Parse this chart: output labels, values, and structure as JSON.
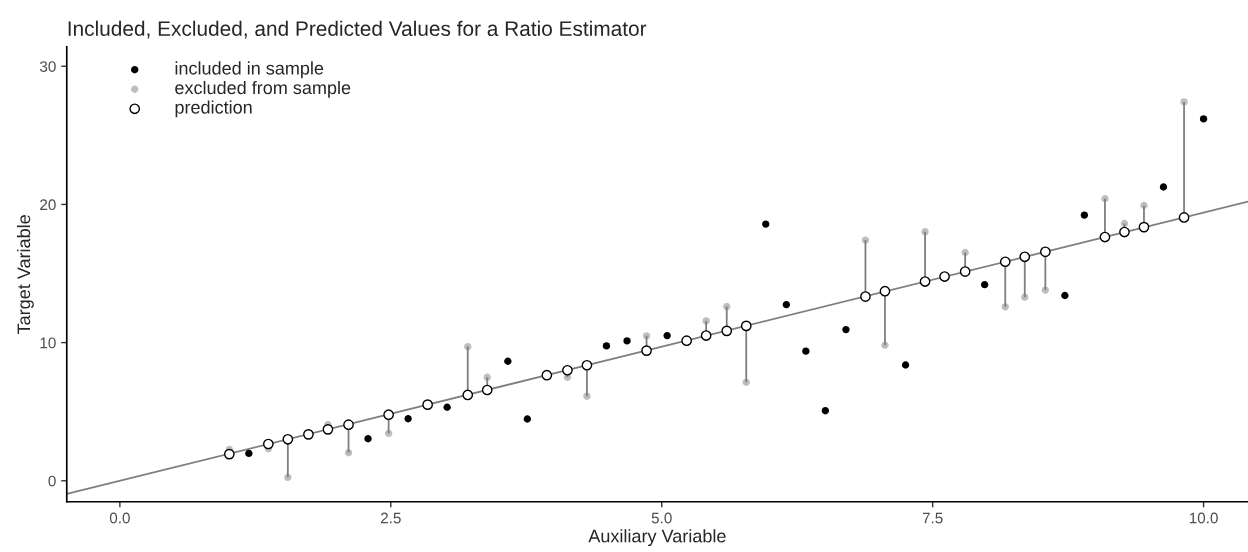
{
  "chart_data": {
    "type": "scatter",
    "title": "Included, Excluded, and Predicted Values for a Ratio Estimator",
    "xlabel": "Auxiliary Variable",
    "ylabel": "Target Variable",
    "xlim": [
      -0.49,
      10.41
    ],
    "ylim": [
      -1.52,
      31.4
    ],
    "xticks": [
      {
        "value": 0,
        "label": "0.0"
      },
      {
        "value": 2.5,
        "label": "2.5"
      },
      {
        "value": 5,
        "label": "5.0"
      },
      {
        "value": 7.5,
        "label": "7.5"
      },
      {
        "value": 10,
        "label": "10.0"
      }
    ],
    "yticks": [
      0,
      10,
      20,
      30
    ],
    "grid": false,
    "legend": "top left",
    "series": [
      {
        "type": "line",
        "color": "#7f7f7f",
        "marker": "none",
        "x": [
          -0.49,
          10.41
        ],
        "values": [
          -0.95,
          20.2
        ]
      },
      {
        "name": "included in sample",
        "color": "#000000",
        "x": [
          1.19,
          2.29,
          2.66,
          3.02,
          3.58,
          3.76,
          4.49,
          4.68,
          5.05,
          5.96,
          6.15,
          6.33,
          6.51,
          6.7,
          7.25,
          7.98,
          8.72,
          8.9,
          9.63,
          10.0
        ],
        "values": [
          1.98,
          3.04,
          4.49,
          5.32,
          8.65,
          4.47,
          9.76,
          10.12,
          10.51,
          18.58,
          12.75,
          9.38,
          5.07,
          10.94,
          8.38,
          14.2,
          13.41,
          19.23,
          21.26,
          26.19
        ]
      },
      {
        "name": "excluded from sample",
        "color": "#bebebe",
        "x": [
          1.01,
          1.37,
          1.55,
          1.92,
          2.11,
          2.48,
          3.21,
          3.39,
          4.13,
          4.31,
          4.86,
          5.41,
          5.6,
          5.78,
          6.88,
          7.06,
          7.43,
          7.8,
          8.17,
          8.35,
          8.54,
          9.09,
          9.27,
          9.45,
          9.82
        ],
        "values": [
          2.27,
          2.32,
          0.25,
          4.06,
          2.03,
          3.43,
          9.71,
          7.49,
          7.49,
          6.12,
          10.49,
          11.57,
          12.61,
          7.13,
          17.42,
          9.81,
          18.02,
          16.52,
          12.59,
          13.29,
          13.8,
          20.41,
          18.62,
          19.93,
          27.42
        ]
      },
      {
        "name": "prediction",
        "color": "#ffffff",
        "x": [
          1.01,
          1.37,
          1.55,
          1.74,
          1.92,
          2.11,
          2.48,
          2.84,
          3.21,
          3.39,
          3.94,
          4.13,
          4.31,
          4.86,
          5.23,
          5.41,
          5.6,
          5.78,
          6.88,
          7.06,
          7.43,
          7.61,
          7.8,
          8.17,
          8.35,
          8.54,
          9.09,
          9.27,
          9.45,
          9.82
        ],
        "values": [
          1.93,
          2.66,
          3.0,
          3.36,
          3.72,
          4.06,
          4.78,
          5.51,
          6.21,
          6.57,
          7.64,
          8.0,
          8.36,
          9.42,
          10.14,
          10.51,
          10.85,
          11.21,
          13.33,
          13.72,
          14.42,
          14.78,
          15.14,
          15.85,
          16.21,
          16.57,
          17.64,
          18.0,
          18.36,
          19.06
        ],
        "errors": [
          [
            1.93,
            2.27
          ],
          [
            2.32,
            2.66
          ],
          [
            0.25,
            3.0
          ],
          null,
          [
            3.72,
            4.06
          ],
          [
            2.03,
            4.06
          ],
          [
            3.43,
            4.78
          ],
          null,
          [
            6.21,
            9.71
          ],
          [
            6.57,
            7.49
          ],
          null,
          [
            7.49,
            8.0
          ],
          [
            6.12,
            8.36
          ],
          [
            9.42,
            10.49
          ],
          null,
          [
            10.51,
            11.57
          ],
          [
            10.85,
            12.61
          ],
          [
            7.13,
            11.21
          ],
          [
            13.33,
            17.42
          ],
          [
            9.81,
            13.72
          ],
          [
            14.42,
            18.02
          ],
          null,
          [
            15.14,
            16.52
          ],
          [
            12.59,
            15.85
          ],
          [
            13.29,
            16.21
          ],
          [
            13.8,
            16.57
          ],
          [
            17.64,
            20.41
          ],
          [
            18.0,
            18.62
          ],
          [
            18.36,
            19.93
          ],
          [
            19.06,
            27.42
          ]
        ]
      }
    ]
  }
}
